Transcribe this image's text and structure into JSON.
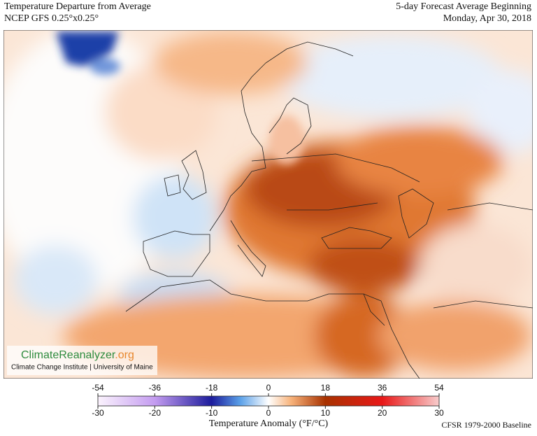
{
  "header": {
    "title_left": "Temperature Departure from Average",
    "subtitle_left": "NCEP GFS 0.25°x0.25°",
    "title_right": "5-day Forecast Average Beginning",
    "subtitle_right": "Monday, Apr 30, 2018"
  },
  "logo": {
    "name": "ClimateReanalyzer",
    "suffix": ".org",
    "institution": "Climate Change Institute | University of Maine"
  },
  "colorbar": {
    "label": "Temperature Anomaly (°F/°C)",
    "f_lim": [
      -54,
      54
    ],
    "f_ticks": [
      -54,
      -36,
      -18,
      0,
      18,
      36,
      54
    ],
    "c_lim": [
      -30,
      30
    ],
    "c_ticks": [
      -30,
      -20,
      -10,
      0,
      10,
      20,
      30
    ],
    "stops": [
      {
        "value": -30,
        "color": "#fbf3fd"
      },
      {
        "value": -20,
        "color": "#c49cf0"
      },
      {
        "value": -10,
        "color": "#1c1c9c"
      },
      {
        "value": -5,
        "color": "#5aa0e8"
      },
      {
        "value": 0,
        "color": "#ffffff"
      },
      {
        "value": 4,
        "color": "#f7b27a"
      },
      {
        "value": 10,
        "color": "#a83200"
      },
      {
        "value": 20,
        "color": "#e81818"
      },
      {
        "value": 30,
        "color": "#f8cccc"
      }
    ]
  },
  "footer": {
    "baseline": "CFSR 1979-2000 Baseline"
  }
}
